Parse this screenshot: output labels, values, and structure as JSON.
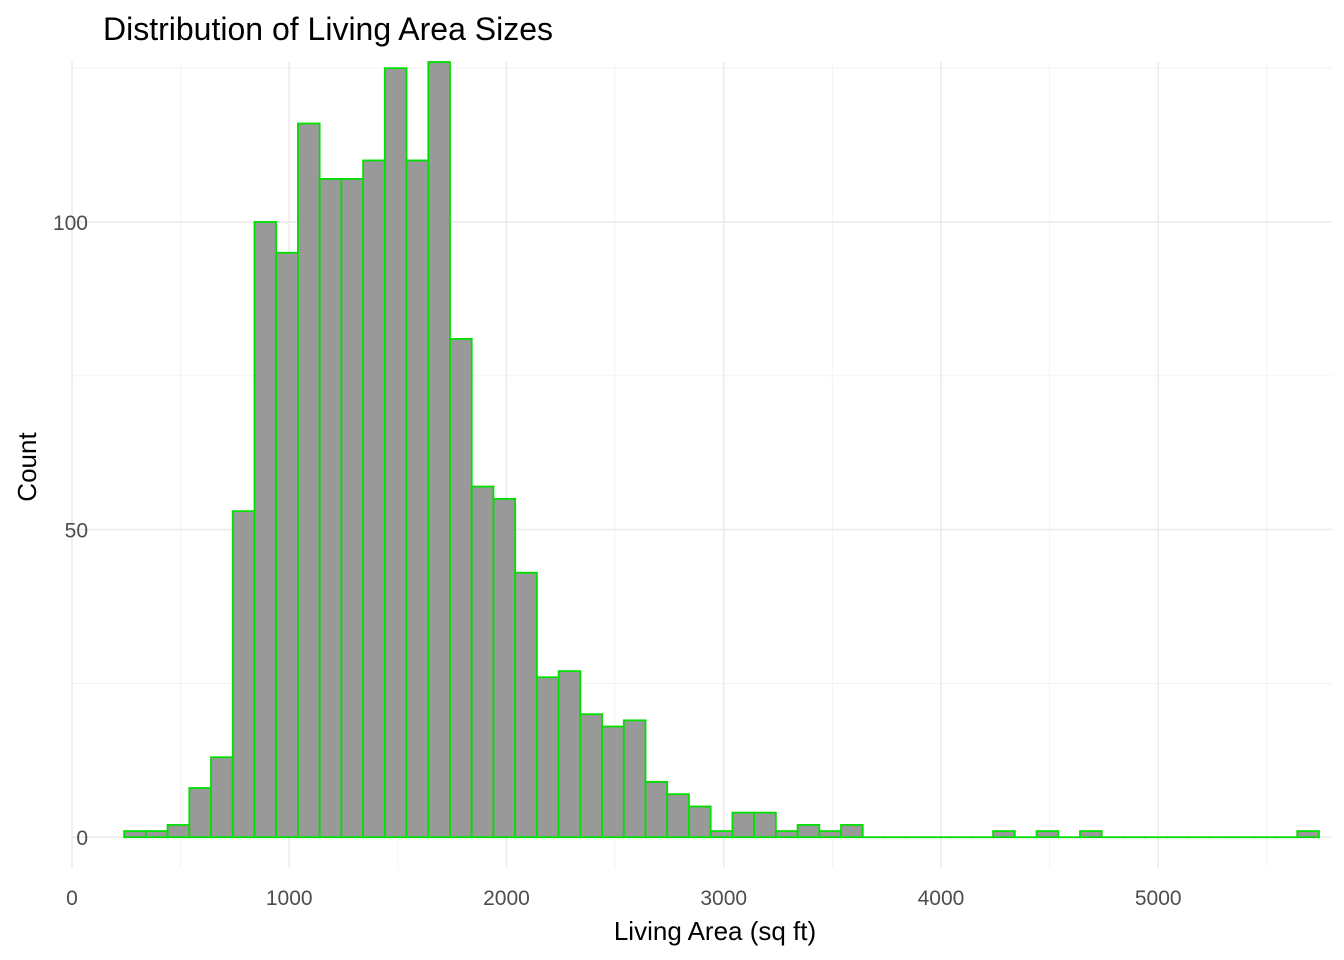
{
  "chart_data": {
    "type": "bar",
    "subtype": "histogram",
    "title": "Distribution of Living Area Sizes",
    "xlabel": "Living Area (sq ft)",
    "ylabel": "Count",
    "xlim": [
      0,
      5800
    ],
    "ylim": [
      -5,
      126
    ],
    "x_ticks": [
      0,
      1000,
      2000,
      3000,
      4000,
      5000
    ],
    "x_tick_labels": [
      "0",
      "1000",
      "2000",
      "3000",
      "4000",
      "5000"
    ],
    "y_ticks": [
      0,
      50,
      100
    ],
    "y_tick_labels": [
      "0",
      "50",
      "100"
    ],
    "grid": true,
    "bin_start": 240,
    "bin_width": 100,
    "counts": [
      1,
      1,
      2,
      8,
      13,
      53,
      100,
      95,
      116,
      107,
      107,
      110,
      125,
      110,
      126,
      81,
      57,
      55,
      43,
      26,
      27,
      20,
      18,
      19,
      9,
      7,
      5,
      1,
      4,
      4,
      1,
      2,
      1,
      2,
      0,
      0,
      0,
      0,
      0,
      0,
      1,
      0,
      1,
      0,
      1,
      0,
      0,
      0,
      0,
      0,
      0,
      0,
      0,
      0,
      1
    ],
    "fill_color": "#999999",
    "edge_color": "#00e000"
  }
}
